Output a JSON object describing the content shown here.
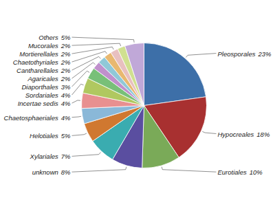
{
  "chart_data": {
    "type": "pie",
    "categories": [
      "Pleosporales",
      "Hypocreales",
      "Eurotiales",
      "unknown",
      "Xylariales",
      "Helotiales",
      "Chaetosphaeriales",
      "Incertae sedis",
      "Sordariales",
      "Diaporthales",
      "Agaricales",
      "Cantharellales",
      "Chaetothyriales",
      "Mortierellales",
      "Mucorales",
      "Others"
    ],
    "values": [
      23,
      18,
      10,
      8,
      7,
      5,
      4,
      4,
      4,
      3,
      2,
      2,
      2,
      2,
      2,
      5
    ],
    "value_labels": [
      "23%",
      "18%",
      "10%",
      "8%",
      "7%",
      "5%",
      "4%",
      "4%",
      "4%",
      "3%",
      "2%",
      "2%",
      "2%",
      "2%",
      "2%",
      "5%"
    ],
    "colors": [
      "#3d6fa8",
      "#a83030",
      "#7aaa58",
      "#5a4ea0",
      "#3aacb0",
      "#d07830",
      "#8ab8d8",
      "#e89090",
      "#b0c860",
      "#78c078",
      "#c090cc",
      "#90c8d8",
      "#e8b870",
      "#e8c0c0",
      "#d0e090",
      "#c0a8d8"
    ],
    "data_labels": true
  }
}
